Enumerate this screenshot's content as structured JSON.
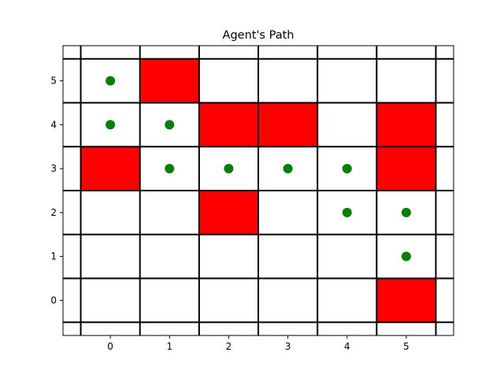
{
  "chart_data": {
    "type": "heatmap",
    "title": "Agent's Path",
    "xlabel": "",
    "ylabel": "",
    "x_ticks": [
      "0",
      "1",
      "2",
      "3",
      "4",
      "5"
    ],
    "y_ticks": [
      "0",
      "1",
      "2",
      "3",
      "4",
      "5"
    ],
    "xlim": [
      -0.8,
      5.8
    ],
    "ylim": [
      -0.8,
      5.8
    ],
    "grid": true,
    "obstacle_color": "#ff0000",
    "path_color": "#008000",
    "grid_line_color": "#000000",
    "obstacles": [
      {
        "x": 1,
        "y": 5
      },
      {
        "x": 2,
        "y": 4
      },
      {
        "x": 3,
        "y": 4
      },
      {
        "x": 5,
        "y": 4
      },
      {
        "x": 0,
        "y": 3
      },
      {
        "x": 5,
        "y": 3
      },
      {
        "x": 2,
        "y": 2
      },
      {
        "x": 5,
        "y": 0
      }
    ],
    "path": [
      {
        "x": 0,
        "y": 5
      },
      {
        "x": 0,
        "y": 4
      },
      {
        "x": 1,
        "y": 4
      },
      {
        "x": 1,
        "y": 3
      },
      {
        "x": 2,
        "y": 3
      },
      {
        "x": 3,
        "y": 3
      },
      {
        "x": 4,
        "y": 3
      },
      {
        "x": 4,
        "y": 2
      },
      {
        "x": 5,
        "y": 2
      },
      {
        "x": 5,
        "y": 1
      }
    ]
  }
}
